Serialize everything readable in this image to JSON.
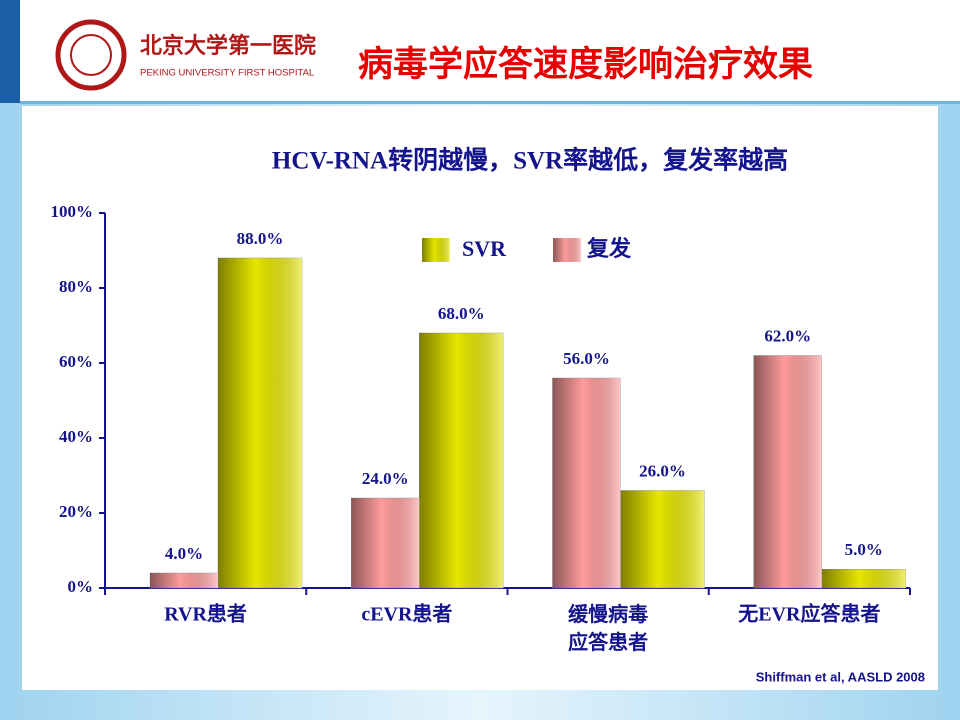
{
  "header": {
    "hospital_cn": "北京大学第一医院",
    "hospital_en": "PEKING UNIVERSITY FIRST HOSPITAL"
  },
  "chart_data": {
    "type": "bar",
    "title": "病毒学应答速度影响治疗效果",
    "subtitle": "HCV-RNA转阴越慢，SVR率越低，复发率越高",
    "categories": [
      "RVR患者",
      "cEVR患者",
      "缓慢病毒\n应答患者",
      "无EVR应答患者"
    ],
    "series": [
      {
        "name": "SVR",
        "color": "#e6e600",
        "values": [
          88,
          68,
          26,
          5
        ],
        "value_labels": [
          "88.0%",
          "68.0%",
          "26.0%",
          "5.0%"
        ]
      },
      {
        "name": "复发",
        "color": "#ff9c9c",
        "values": [
          4,
          24,
          56,
          62
        ],
        "value_labels": [
          "4.0%",
          "24.0%",
          "56.0%",
          "62.0%"
        ]
      }
    ],
    "ylim": [
      0,
      100
    ],
    "yticks": [
      {
        "value": 0,
        "label": "0%"
      },
      {
        "value": 20,
        "label": "20%"
      },
      {
        "value": 40,
        "label": "40%"
      },
      {
        "value": 60,
        "label": "60%"
      },
      {
        "value": 80,
        "label": "80%"
      },
      {
        "value": 100,
        "label": "100%"
      }
    ],
    "source": "Shiffman et al, AASLD 2008"
  }
}
